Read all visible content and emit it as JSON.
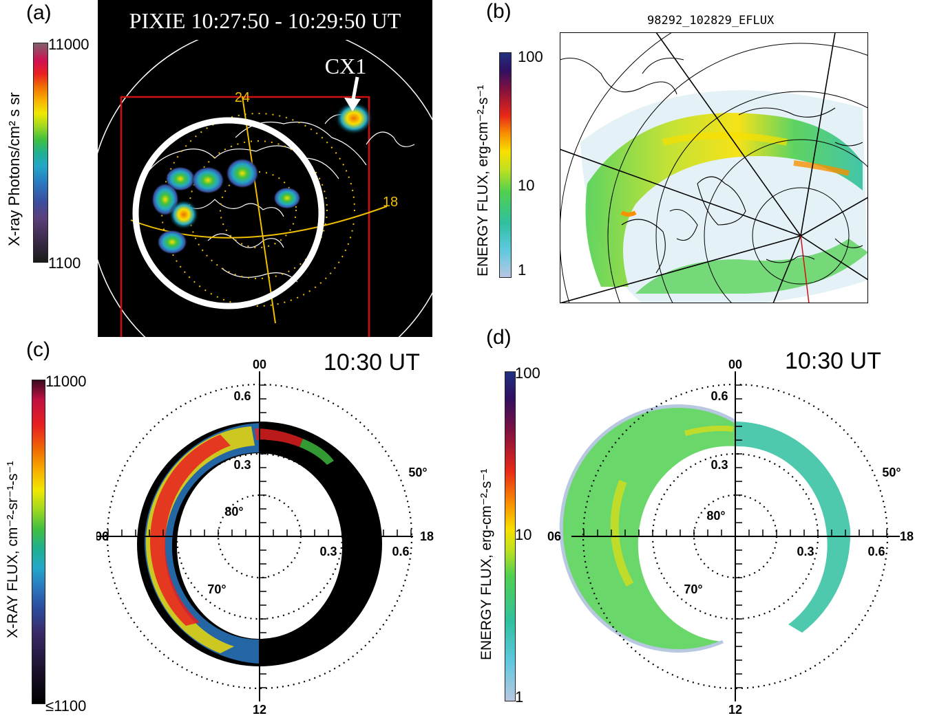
{
  "panels": {
    "a": {
      "label": "(a)",
      "title": "PIXIE 10:27:50 - 10:29:50 UT",
      "colorbar": {
        "label": "X-ray Photons/cm² s sr",
        "max": "11000",
        "min": "1100"
      },
      "callout": "CX1",
      "mlt_labels": [
        "24",
        "18"
      ]
    },
    "b": {
      "label": "(b)",
      "title": "98292_102829_EFLUX",
      "colorbar": {
        "label": "ENERGY FLUX, erg-cm⁻²-s⁻¹",
        "ticks": [
          "100",
          "10",
          "1"
        ]
      }
    },
    "c": {
      "label": "(c)",
      "time": "10:30 UT",
      "colorbar": {
        "label": "X-RAY FLUX, cm⁻²-sr⁻¹-s⁻¹",
        "max": "11000",
        "min": "≤1100"
      },
      "axis_labels": {
        "top": "00",
        "left": "06",
        "right": "18",
        "bottom": "12"
      },
      "radial_labels": [
        "0.6",
        "0.3",
        "0.3",
        "0.6"
      ],
      "lat_labels": [
        "80°",
        "70°",
        "50°"
      ]
    },
    "d": {
      "label": "(d)",
      "time": "10:30 UT",
      "colorbar": {
        "label": "ENERGY FLUX, erg-cm⁻²-s⁻¹",
        "ticks": [
          "100",
          "10",
          "1"
        ]
      },
      "axis_labels": {
        "top": "00",
        "left": "06",
        "right": "18",
        "bottom": "12"
      },
      "radial_labels": [
        "0.6",
        "0.3",
        "0.3",
        "0.6"
      ],
      "lat_labels": [
        "80°",
        "70°",
        "50°"
      ]
    }
  },
  "colors": {
    "xray_scale": [
      "#1a1a1a",
      "#3b2b4a",
      "#5a3f7a",
      "#3a4fa0",
      "#2a78c0",
      "#22a8c8",
      "#20b090",
      "#40c040",
      "#a0d820",
      "#f0e800",
      "#f8b000",
      "#f07000",
      "#e82020",
      "#d01050",
      "#806070"
    ],
    "flux_scale": [
      "#b8c8e0",
      "#5fc8e0",
      "#30c0a0",
      "#50d050",
      "#c0e020",
      "#f8e000",
      "#f89000",
      "#e82818",
      "#801040",
      "#301060",
      "#203080"
    ],
    "polar_grid": "#000000",
    "mlt_lines": "#f0c000",
    "frame": "#d01010"
  }
}
